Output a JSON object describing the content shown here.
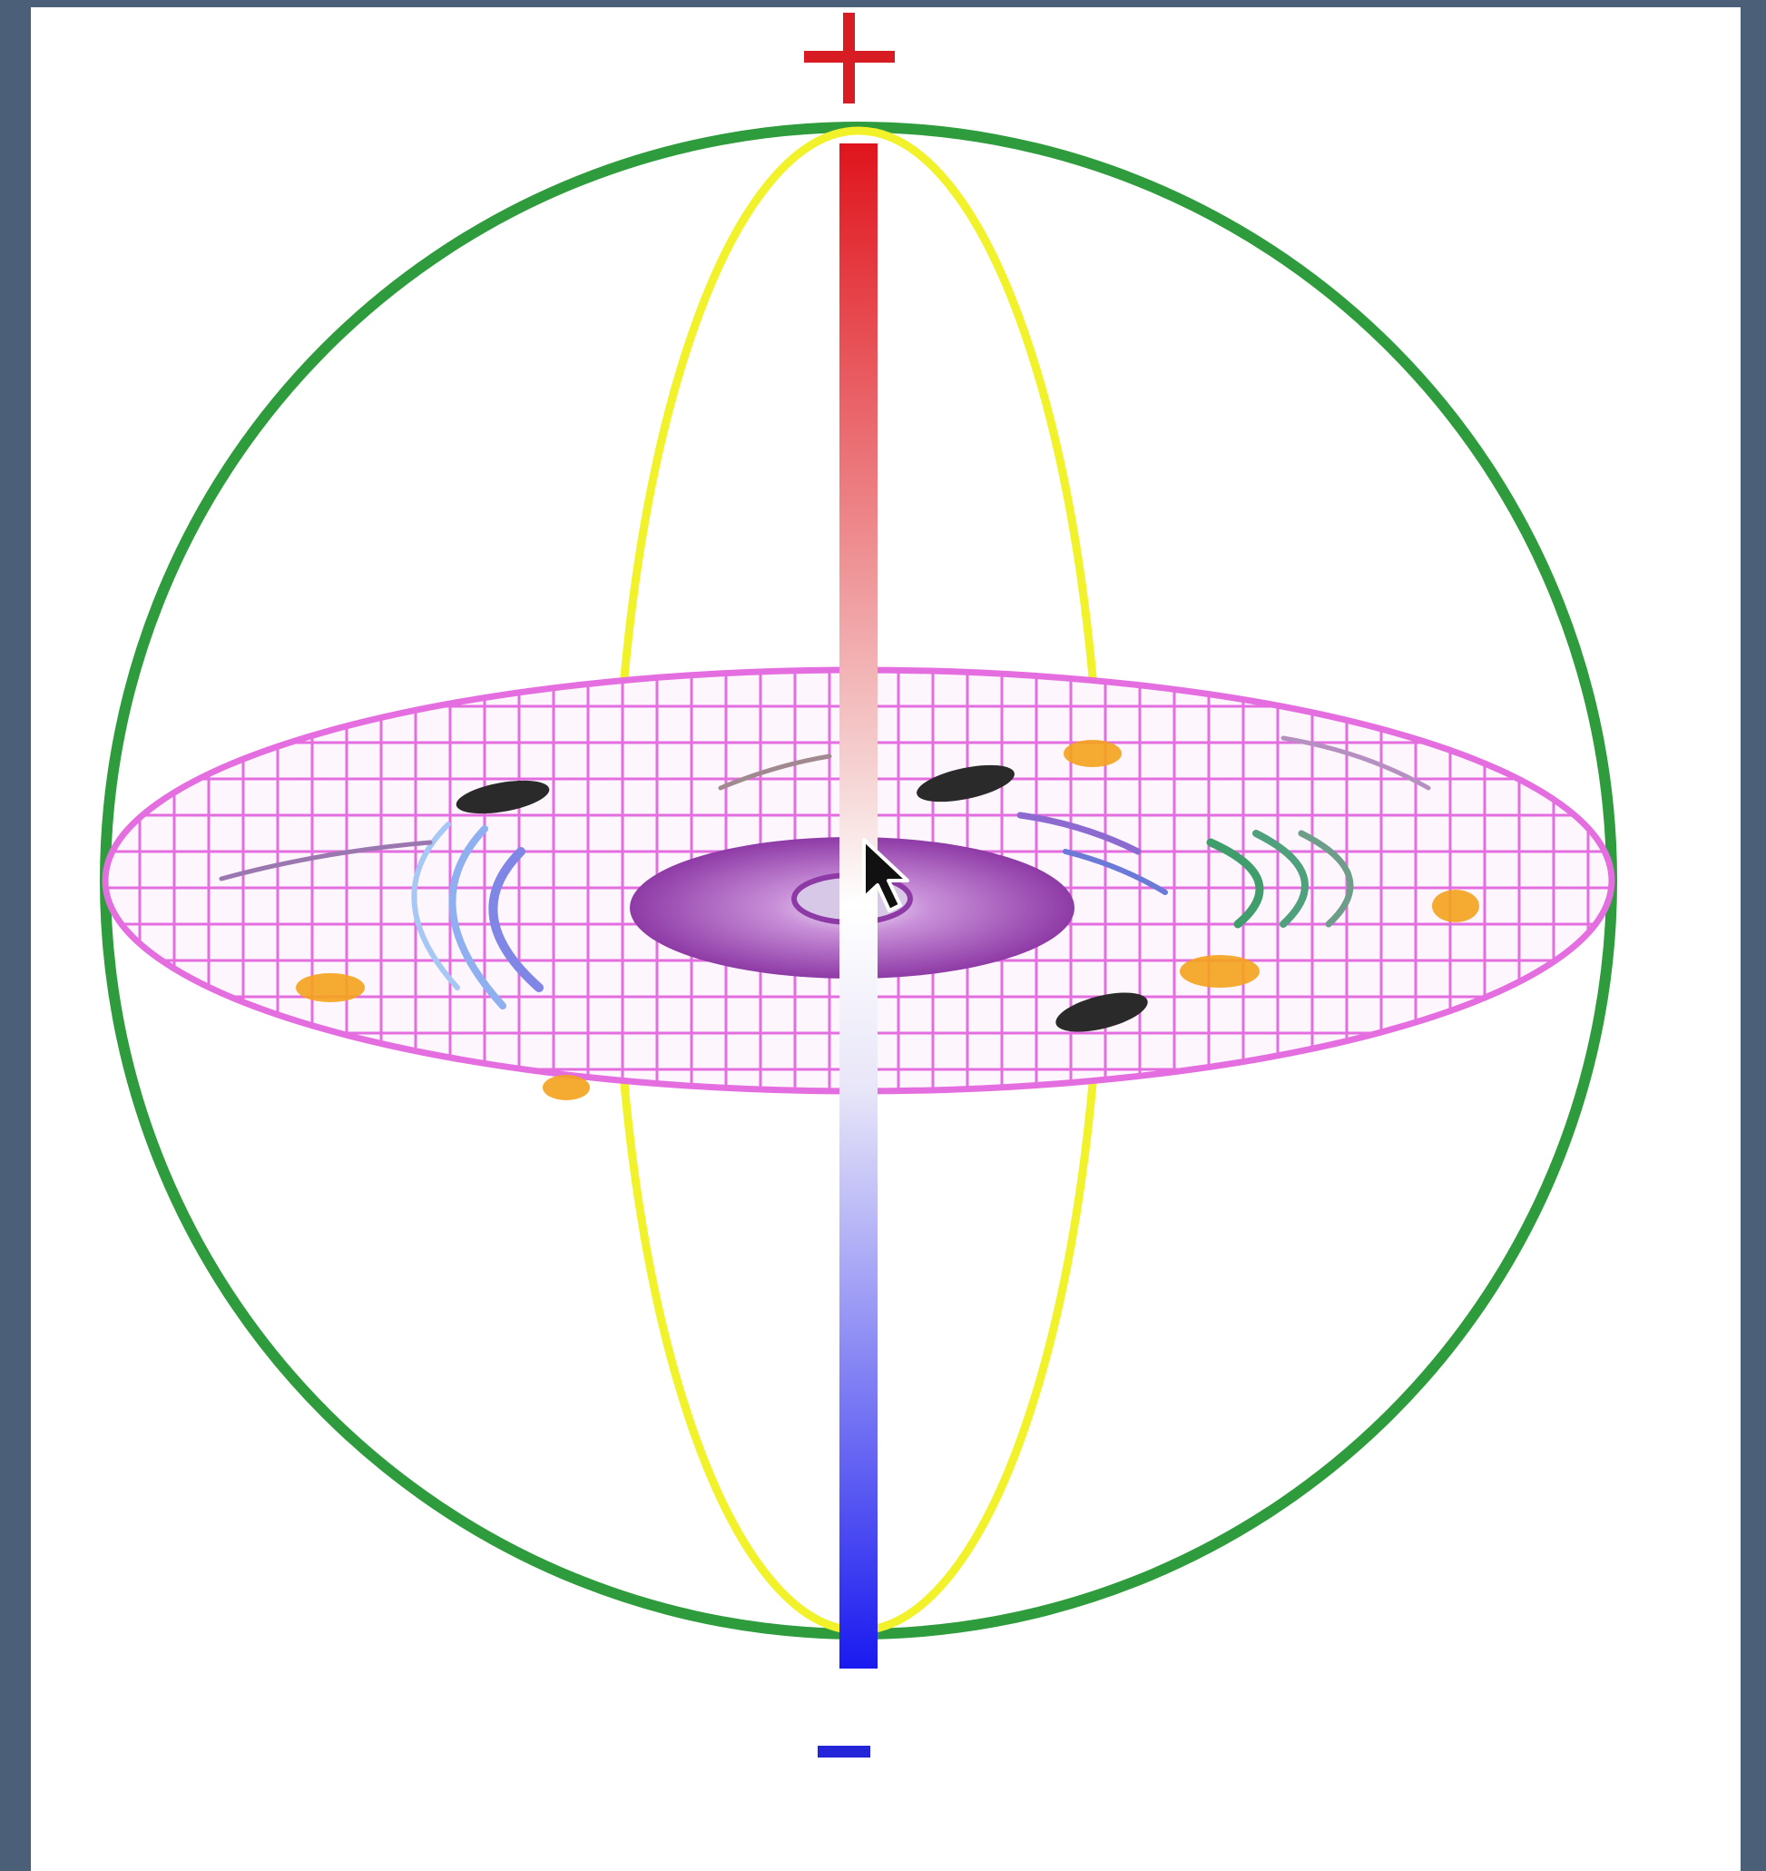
{
  "diagram": {
    "plus_label": "+",
    "minus_label": "−",
    "colors": {
      "outer_sphere": "#2e9b3c",
      "meridian": "#f2f22a",
      "grid": "#e46ee0",
      "positive_pole": "#e0141c",
      "negative_pole": "#1a1af0",
      "core": "#9b3fb0",
      "background_frame": "#4b6078"
    },
    "icons": {
      "cursor": "cursor-arrow-icon"
    }
  }
}
